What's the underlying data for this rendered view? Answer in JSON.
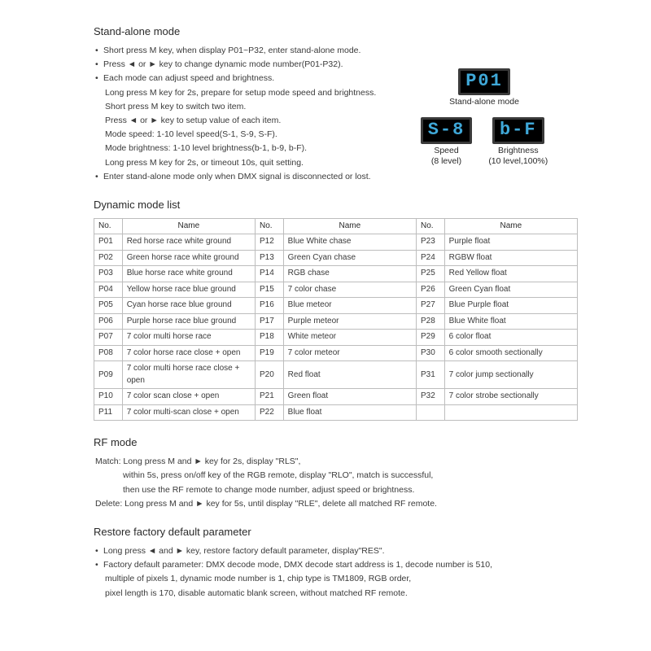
{
  "standalone": {
    "title": "Stand-alone mode",
    "b1": "Short press M key, when display P01~P32, enter stand-alone mode.",
    "b2": "Press ◄ or ► key to change dynamic mode number(P01-P32).",
    "b3": "Each mode can adjust speed and brightness.",
    "s1": "Long press M key for 2s, prepare for setup mode speed and brightness.",
    "s2": "Short press M key to switch two item.",
    "s3": "Press ◄ or ► key to setup value of each item.",
    "s4": "Mode speed: 1-10 level speed(S-1, S-9, S-F).",
    "s5": "Mode brightness: 1-10 level brightness(b-1, b-9, b-F).",
    "s6": "Long press M key for 2s, or timeout 10s, quit setting.",
    "b4": "Enter stand-alone mode only when DMX signal is disconnected or lost."
  },
  "displays": {
    "lcd1": "P01",
    "cap1": "Stand-alone mode",
    "lcd2": "S-8",
    "cap2a": "Speed",
    "cap2b": "(8 level)",
    "lcd3": "b-F",
    "cap3a": "Brightness",
    "cap3b": "(10 level,100%)",
    "lcd_bg": "#000000",
    "lcd_fg": "#3fa8d8",
    "lcd_border": "#3a3a3a"
  },
  "modelist": {
    "title": "Dynamic mode list",
    "table": {
      "bordercolor": "#bdbdbd",
      "fontsize": 10,
      "columns": [
        "No.",
        "Name",
        "No.",
        "Name",
        "No.",
        "Name"
      ],
      "rows": [
        [
          "P01",
          "Red horse race white ground",
          "P12",
          "Blue White chase",
          "P23",
          "Purple float"
        ],
        [
          "P02",
          "Green horse race white ground",
          "P13",
          "Green Cyan chase",
          "P24",
          "RGBW float"
        ],
        [
          "P03",
          "Blue horse race white ground",
          "P14",
          "RGB chase",
          "P25",
          "Red Yellow float"
        ],
        [
          "P04",
          "Yellow horse race blue ground",
          "P15",
          "7 color chase",
          "P26",
          "Green Cyan float"
        ],
        [
          "P05",
          "Cyan horse race blue ground",
          "P16",
          "Blue meteor",
          "P27",
          "Blue Purple float"
        ],
        [
          "P06",
          "Purple horse race blue ground",
          "P17",
          "Purple meteor",
          "P28",
          "Blue White float"
        ],
        [
          "P07",
          "7 color multi horse race",
          "P18",
          "White meteor",
          "P29",
          "6 color float"
        ],
        [
          "P08",
          "7 color horse race close + open",
          "P19",
          "7 color meteor",
          "P30",
          "6 color smooth sectionally"
        ],
        [
          "P09",
          "7 color multi horse race close + open",
          "P20",
          "Red float",
          "P31",
          "7 color jump sectionally"
        ],
        [
          "P10",
          "7 color scan close + open",
          "P21",
          "Green float",
          "P32",
          "7 color strobe sectionally"
        ],
        [
          "P11",
          "7 color multi-scan close + open",
          "P22",
          "Blue float",
          "",
          ""
        ]
      ]
    }
  },
  "rf": {
    "title": "RF mode",
    "l1": "Match: Long press M and ► key for 2s, display \"RLS\",",
    "l2": "within 5s, press on/off key of the RGB remote, display \"RLO\", match is successful,",
    "l3": "then use the RF remote to change mode number, adjust speed or brightness.",
    "l4": "Delete: Long press M and ► key for 5s, until display \"RLE\", delete all matched RF remote."
  },
  "restore": {
    "title": "Restore factory default parameter",
    "b1": "Long press ◄ and ► key, restore factory default parameter, display\"RES\".",
    "b2": "Factory default parameter: DMX decode mode, DMX decode start address is 1, decode number is 510,",
    "s1": "multiple of pixels 1, dynamic mode number is 1, chip type is TM1809, RGB order,",
    "s2": "pixel length is 170, disable automatic blank screen, without matched RF remote."
  },
  "colors": {
    "text": "#3a3a3a",
    "heading": "#2a2a2a",
    "background": "#ffffff"
  }
}
